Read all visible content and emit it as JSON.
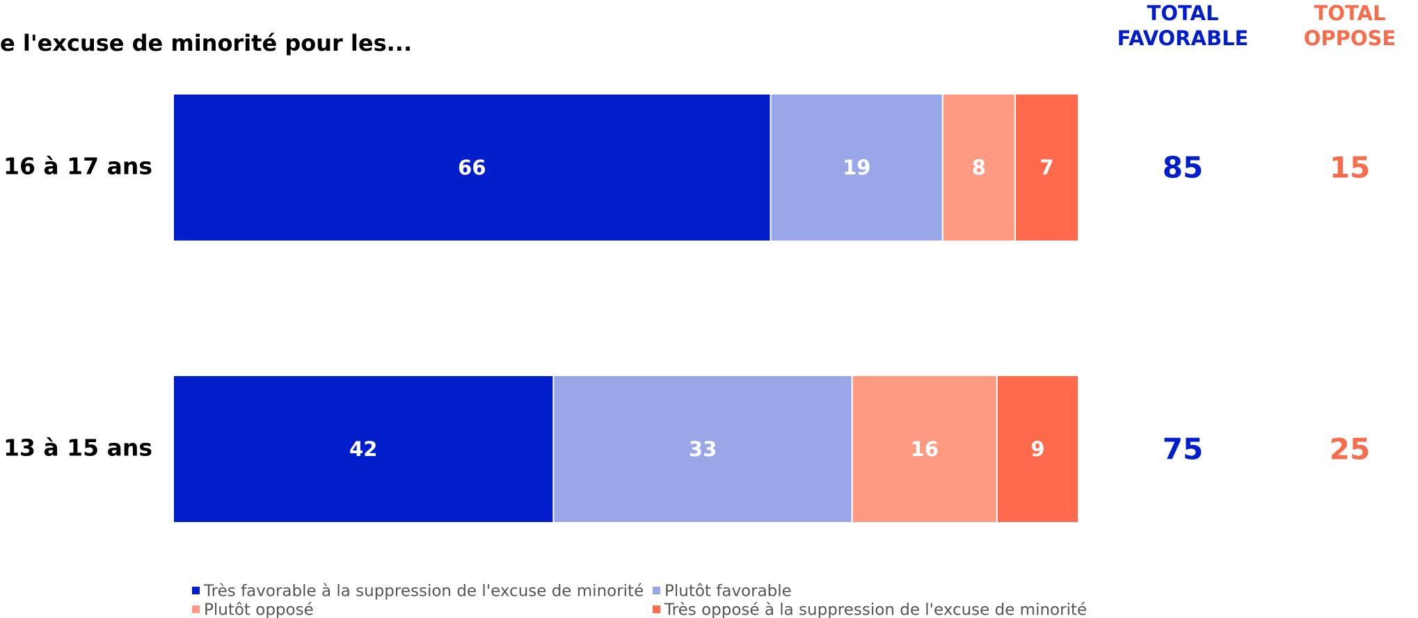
{
  "chart_data": {
    "type": "stacked_bar_h",
    "title": "e l'excuse de minorité pour les...",
    "categories": [
      "16 à 17 ans",
      "13 à 15 ans"
    ],
    "series": [
      {
        "name": "Très favorable à la suppression de l'excuse de minorité",
        "color": "#021ecb",
        "values": [
          66,
          42
        ]
      },
      {
        "name": "Plutôt favorable",
        "color": "#99a6e8",
        "values": [
          19,
          33
        ]
      },
      {
        "name": "Plutôt opposé",
        "color": "#ff9a82",
        "values": [
          8,
          16
        ]
      },
      {
        "name": "Très opposé à la suppression de l'excuse de minorité",
        "color": "#ff6a4d",
        "values": [
          7,
          9
        ]
      }
    ],
    "xlim": [
      0,
      100
    ],
    "totals": [
      {
        "header": [
          "TOTAL",
          "FAVORABLE"
        ],
        "color": "#021ecb",
        "values": [
          85,
          75
        ]
      },
      {
        "header": [
          "TOTAL",
          "OPPOSE"
        ],
        "color": "#f66d4d",
        "values": [
          15,
          25
        ]
      }
    ]
  }
}
